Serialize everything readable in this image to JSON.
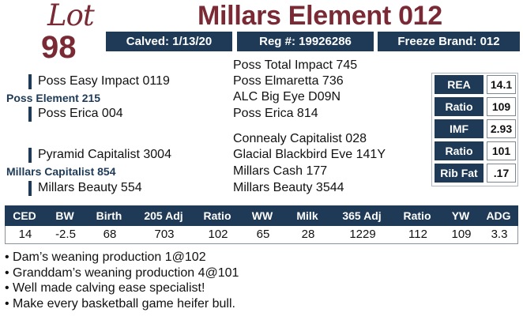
{
  "lot": {
    "word": "Lot",
    "number": "98"
  },
  "animal": {
    "name": "Millars Element 012"
  },
  "info_bar": {
    "calved": "Calved: 1/13/20",
    "reg": "Reg #: 19926286",
    "freeze_brand": "Freeze Brand: 012"
  },
  "pedigree": {
    "sire": "Poss Element 215",
    "sire_sire": "Poss Easy Impact 0119",
    "sire_dam": "Poss Erica 004",
    "sire_sire_sire": "Poss Total Impact 745",
    "sire_sire_dam": "Poss Elmaretta 736",
    "sire_dam_sire": "ALC Big Eye D09N",
    "sire_dam_dam": "Poss Erica 814",
    "dam": "Millars Capitalist 854",
    "dam_sire": "Pyramid Capitalist 3004",
    "dam_dam": "Millars Beauty 554",
    "dam_sire_sire": "Connealy Capitalist 028",
    "dam_sire_dam": "Glacial Blackbird Eve 141Y",
    "dam_dam_sire": "Millars Cash 177",
    "dam_dam_dam": "Millars Beauty 3544"
  },
  "carcass": [
    {
      "label": "REA",
      "value": "14.1"
    },
    {
      "label": "Ratio",
      "value": "109"
    },
    {
      "label": "IMF",
      "value": "2.93"
    },
    {
      "label": "Ratio",
      "value": "101"
    },
    {
      "label": "Rib Fat",
      "value": ".17"
    }
  ],
  "performance": {
    "headers": [
      "CED",
      "BW",
      "Birth",
      "205 Adj",
      "Ratio",
      "WW",
      "Milk",
      "365 Adj",
      "Ratio",
      "YW",
      "ADG"
    ],
    "values": [
      "14",
      "-2.5",
      "68",
      "703",
      "102",
      "65",
      "28",
      "1229",
      "112",
      "109",
      "3.3"
    ]
  },
  "notes": [
    "• Dam’s weaning production 1@102",
    "• Granddam’s weaning production 4@101",
    "• Well made calving ease specialist!",
    "• Make every basketball game heifer bull."
  ],
  "colors": {
    "maroon": "#7a2a35",
    "navy": "#1e3a56"
  }
}
